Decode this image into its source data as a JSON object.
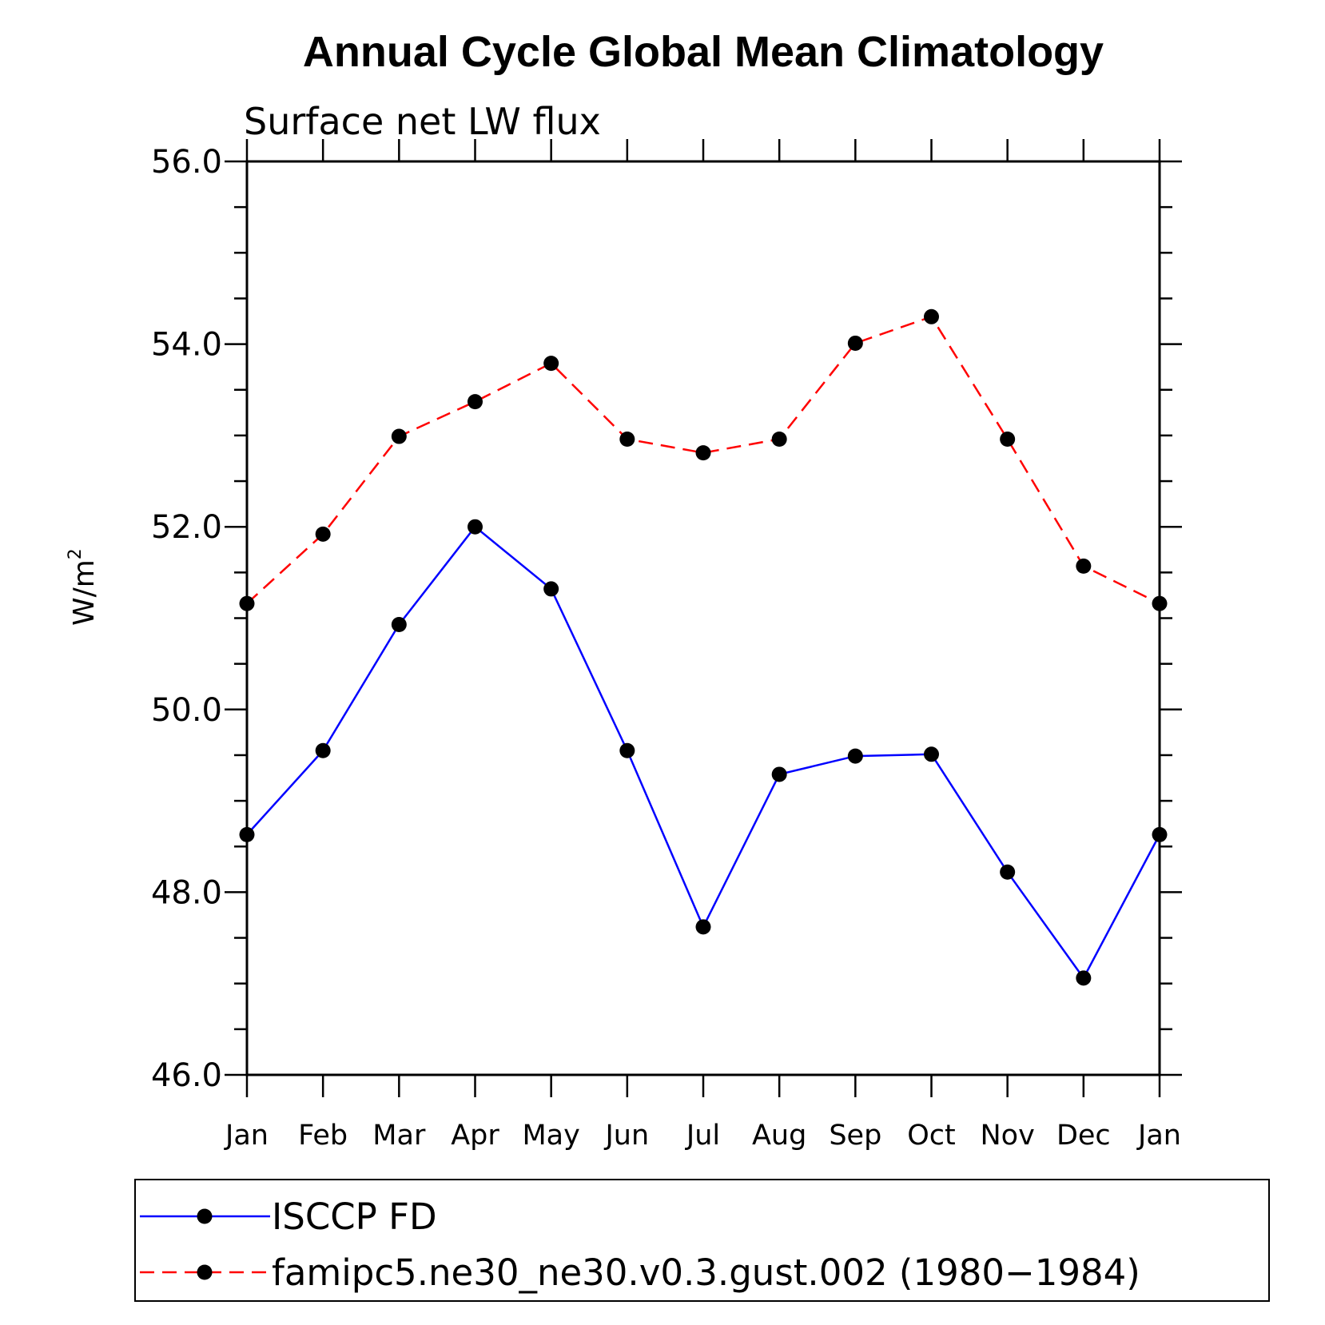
{
  "chart_data": {
    "type": "line",
    "title": "Annual Cycle Global Mean Climatology",
    "subtitle": "Surface net LW flux",
    "ylabel_base": "W/m",
    "ylabel_sup": "2",
    "xlabel": "",
    "categories": [
      "Jan",
      "Feb",
      "Mar",
      "Apr",
      "May",
      "Jun",
      "Jul",
      "Aug",
      "Sep",
      "Oct",
      "Nov",
      "Dec",
      "Jan"
    ],
    "ylim": [
      46.0,
      56.0
    ],
    "yticks": [
      "46.0",
      "48.0",
      "50.0",
      "52.0",
      "54.0",
      "56.0"
    ],
    "grid": false,
    "legend_position": "bottom",
    "series": [
      {
        "name": "ISCCP FD",
        "color": "#0000ff",
        "style": "solid",
        "marker": "filled-circle",
        "values": [
          48.63,
          49.55,
          50.93,
          52.0,
          51.32,
          49.55,
          47.62,
          49.29,
          49.49,
          49.51,
          48.22,
          47.06,
          48.63
        ]
      },
      {
        "name": "famipc5.ne30_ne30.v0.3.gust.002 (1980−1984)",
        "color": "#ff0000",
        "style": "dashed",
        "marker": "filled-circle",
        "values": [
          51.16,
          51.92,
          52.99,
          53.37,
          53.79,
          52.96,
          52.81,
          52.96,
          54.01,
          54.3,
          52.96,
          51.57,
          51.16
        ]
      }
    ]
  }
}
